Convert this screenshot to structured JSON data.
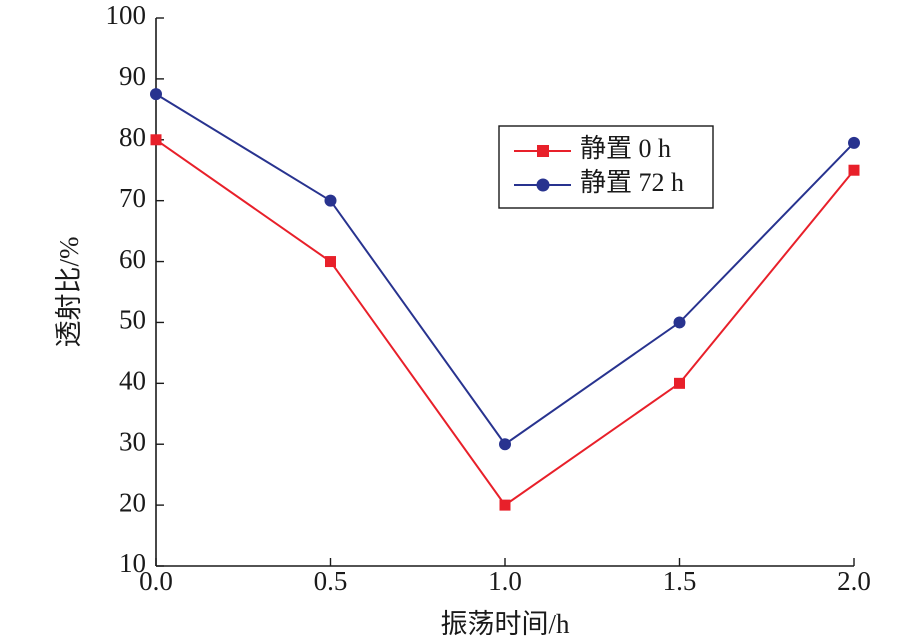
{
  "chart_data": {
    "type": "line",
    "title": "",
    "xlabel": "振荡时间/h",
    "ylabel": "透射比/%",
    "x": [
      0.0,
      0.5,
      1.0,
      1.5,
      2.0
    ],
    "x_tick_labels": [
      "0.0",
      "0.5",
      "1.0",
      "1.5",
      "2.0"
    ],
    "y_tick_labels": [
      "10",
      "20",
      "30",
      "40",
      "50",
      "60",
      "70",
      "80",
      "90",
      "100"
    ],
    "xlim": [
      0.0,
      2.0
    ],
    "ylim": [
      10,
      100
    ],
    "grid": false,
    "legend_position": "upper-right",
    "series": [
      {
        "name": "静置 0 h",
        "color": "#e8202a",
        "marker": "square",
        "values": [
          80,
          60,
          20,
          40,
          75
        ]
      },
      {
        "name": "静置 72 h",
        "color": "#28338f",
        "marker": "circle",
        "values": [
          87.5,
          70,
          30,
          50,
          79.5
        ]
      }
    ]
  }
}
